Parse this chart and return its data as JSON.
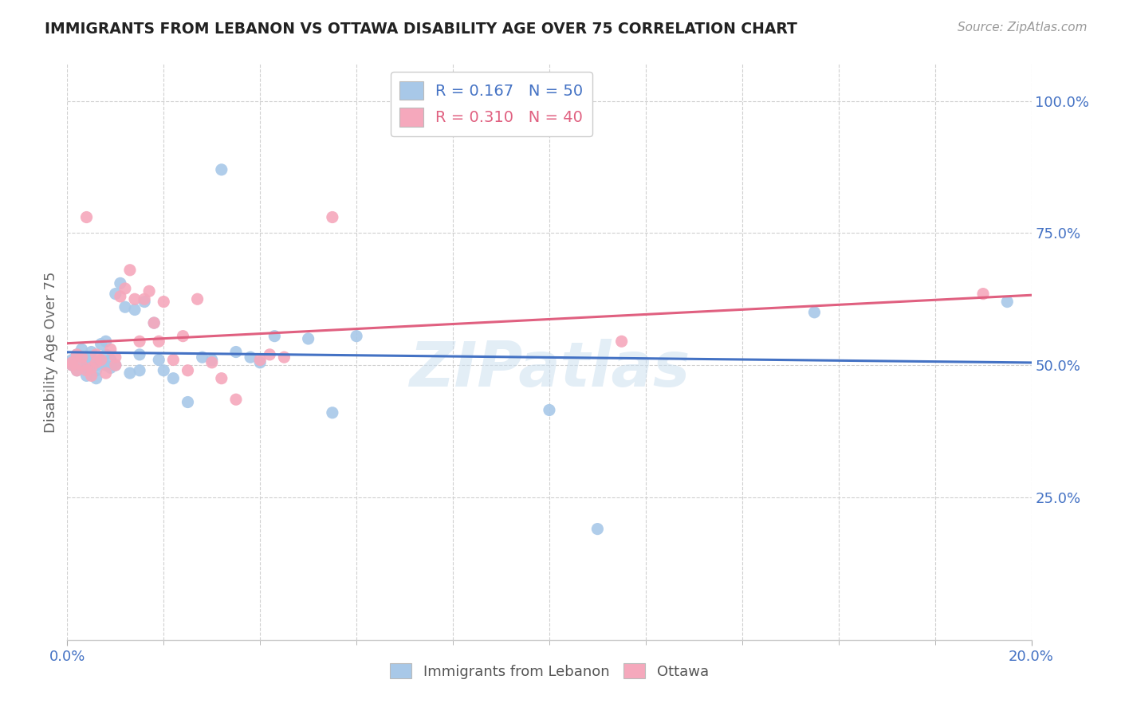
{
  "title": "IMMIGRANTS FROM LEBANON VS OTTAWA DISABILITY AGE OVER 75 CORRELATION CHART",
  "source": "Source: ZipAtlas.com",
  "ylabel": "Disability Age Over 75",
  "xlim": [
    0.0,
    0.2
  ],
  "ylim": [
    -0.02,
    1.07
  ],
  "legend1_label": "R = 0.167   N = 50",
  "legend2_label": "R = 0.310   N = 40",
  "scatter1_color": "#a8c8e8",
  "scatter2_color": "#f5a8bc",
  "line1_color": "#4472c4",
  "line2_color": "#e06080",
  "watermark": "ZIPatlas",
  "background_color": "#ffffff",
  "title_color": "#222222",
  "axis_label_color": "#4472c4",
  "leb_x": [
    0.001,
    0.001,
    0.002,
    0.002,
    0.003,
    0.003,
    0.004,
    0.004,
    0.004,
    0.005,
    0.005,
    0.005,
    0.006,
    0.006,
    0.006,
    0.007,
    0.007,
    0.008,
    0.008,
    0.008,
    0.009,
    0.009,
    0.01,
    0.01,
    0.011,
    0.012,
    0.013,
    0.014,
    0.015,
    0.015,
    0.016,
    0.018,
    0.019,
    0.02,
    0.022,
    0.025,
    0.028,
    0.03,
    0.032,
    0.035,
    0.038,
    0.04,
    0.043,
    0.05,
    0.055,
    0.06,
    0.1,
    0.11,
    0.155,
    0.195
  ],
  "leb_y": [
    0.51,
    0.5,
    0.52,
    0.49,
    0.53,
    0.505,
    0.495,
    0.515,
    0.48,
    0.525,
    0.5,
    0.51,
    0.5,
    0.49,
    0.475,
    0.54,
    0.505,
    0.545,
    0.5,
    0.52,
    0.51,
    0.495,
    0.635,
    0.5,
    0.655,
    0.61,
    0.485,
    0.605,
    0.52,
    0.49,
    0.62,
    0.58,
    0.51,
    0.49,
    0.475,
    0.43,
    0.515,
    0.51,
    0.87,
    0.525,
    0.515,
    0.505,
    0.555,
    0.55,
    0.41,
    0.555,
    0.415,
    0.19,
    0.6,
    0.62
  ],
  "ott_x": [
    0.001,
    0.001,
    0.002,
    0.002,
    0.003,
    0.003,
    0.004,
    0.004,
    0.005,
    0.005,
    0.006,
    0.006,
    0.007,
    0.008,
    0.009,
    0.01,
    0.01,
    0.011,
    0.012,
    0.013,
    0.014,
    0.015,
    0.016,
    0.017,
    0.018,
    0.019,
    0.02,
    0.022,
    0.024,
    0.025,
    0.027,
    0.03,
    0.032,
    0.035,
    0.04,
    0.042,
    0.045,
    0.055,
    0.115,
    0.19
  ],
  "ott_y": [
    0.5,
    0.505,
    0.52,
    0.49,
    0.515,
    0.5,
    0.49,
    0.78,
    0.495,
    0.48,
    0.52,
    0.505,
    0.51,
    0.485,
    0.53,
    0.5,
    0.515,
    0.63,
    0.645,
    0.68,
    0.625,
    0.545,
    0.625,
    0.64,
    0.58,
    0.545,
    0.62,
    0.51,
    0.555,
    0.49,
    0.625,
    0.505,
    0.475,
    0.435,
    0.51,
    0.52,
    0.515,
    0.78,
    0.545,
    0.635
  ]
}
